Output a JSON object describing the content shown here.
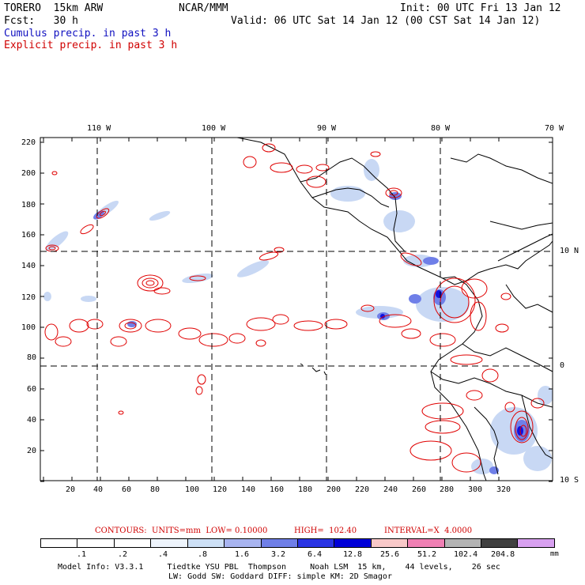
{
  "header": {
    "model": "TORERO  15km ARW",
    "org": "NCAR/MMM",
    "init": "Init: 00 UTC Fri 13 Jan 12",
    "fcst": "Fcst:   30 h",
    "valid": "Valid: 06 UTC Sat 14 Jan 12 (00 CST Sat 14 Jan 12)",
    "cumulus": "Cumulus precip. in past 3 h",
    "explicit": "Explicit precip. in past 3 h"
  },
  "map": {
    "lon_labels": [
      "110 W",
      "100 W",
      "90 W",
      "80 W",
      "70 W"
    ],
    "lat_labels": [
      "10 N",
      "0",
      "10 S"
    ],
    "y_ticks": [
      "220",
      "200",
      "180",
      "160",
      "140",
      "120",
      "100",
      "80",
      "60",
      "40",
      "20"
    ],
    "x_ticks": [
      "20",
      "40",
      "60",
      "80",
      "100",
      "120",
      "140",
      "160",
      "180",
      "200",
      "220",
      "240",
      "260",
      "280",
      "300",
      "320"
    ],
    "colors": {
      "explicit": "#e00000",
      "cumulus_light": "#c8d8f4",
      "cumulus_mid": "#6a7ee8",
      "cumulus_heavy": "#1010e0",
      "coast": "#000000",
      "grid": "#000000"
    }
  },
  "contours_text": {
    "units": "CONTOURS:  UNITS=mm  LOW= 0.10000",
    "high": "HIGH=  102.40",
    "interval": "INTERVAL=X  4.0000"
  },
  "legend": {
    "labels": [
      ".1",
      ".2",
      ".4",
      ".8",
      "1.6",
      "3.2",
      "6.4",
      "12.8",
      "25.6",
      "51.2",
      "102.4",
      "204.8"
    ],
    "unit": "mm",
    "colors": [
      "#ffffff",
      "#ffffff",
      "#ffffff",
      "#eef4fc",
      "#cde0f6",
      "#a8b4f0",
      "#6f7fe8",
      "#2a34e4",
      "#0000d8",
      "#f8c8c8",
      "#f080b4",
      "#b4b4b4",
      "#404040",
      "#d8a0f0"
    ]
  },
  "footer": {
    "line1": "Model Info: V3.3.1     Tiedtke YSU PBL  Thompson     Noah LSM  15 km,    44 levels,    26 sec",
    "line2": "LW: Godd SW: Goddard DIFF: simple KM: 2D Smagor"
  }
}
